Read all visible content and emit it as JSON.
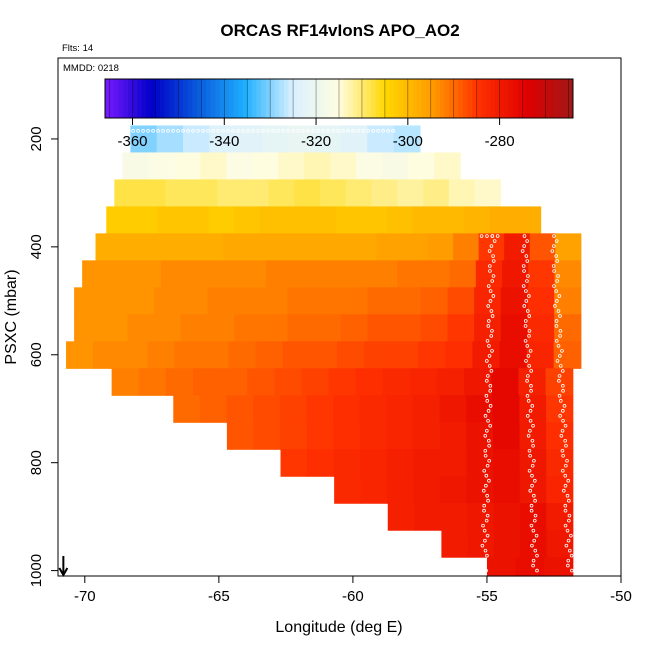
{
  "chart_data": {
    "type": "heatmap",
    "title": "ORCAS RF14vIonS APO_AO2",
    "flights_label": "Flts: 14",
    "date_label": "MMDD: 0218",
    "xlabel": "Longitude (deg E)",
    "ylabel": "PSXC (mbar)",
    "xlim": [
      -71,
      -50
    ],
    "ylim": [
      1010,
      50
    ],
    "x_ticks": [
      -70,
      -65,
      -60,
      -55,
      -50
    ],
    "x_tick_labels": [
      "-70",
      "-65",
      "-60",
      "-55",
      "-50"
    ],
    "y_ticks": [
      200,
      400,
      600,
      800,
      1000
    ],
    "y_tick_labels": [
      "200",
      "400",
      "600",
      "800",
      "1000"
    ],
    "colorbar": {
      "min": -366,
      "max": -264,
      "ticks": [
        -360,
        -340,
        -320,
        -300,
        -280
      ],
      "tick_labels": [
        "-360",
        "-340",
        "-320",
        "-300",
        "-280"
      ],
      "colors": [
        "#7a1aff",
        "#0000c8",
        "#0a5cdc",
        "#1fb0ff",
        "#d9f0ff",
        "#fffde0",
        "#ffd700",
        "#ff9a00",
        "#ff3000",
        "#e00000",
        "#a01818"
      ]
    },
    "rows": [
      {
        "p_top": 175,
        "p_bot": 225,
        "lon_start": -68.3,
        "lon_end": -57.5,
        "values": [
          -330,
          -328,
          -326,
          -324,
          -323,
          -322,
          -321,
          -322,
          -323,
          -326,
          -327
        ]
      },
      {
        "p_top": 225,
        "p_bot": 275,
        "lon_start": -68.6,
        "lon_end": -56.0,
        "values": [
          -317,
          -316,
          -315,
          -314,
          -316,
          -315,
          -314,
          -313,
          -314,
          -316,
          -317,
          -315,
          -314
        ]
      },
      {
        "p_top": 275,
        "p_bot": 325,
        "lon_start": -68.9,
        "lon_end": -54.5,
        "values": [
          -308,
          -308,
          -309,
          -309,
          -310,
          -310,
          -309,
          -308,
          -309,
          -310,
          -311,
          -312,
          -311,
          -313,
          -314
        ]
      },
      {
        "p_top": 325,
        "p_bot": 375,
        "lon_start": -69.2,
        "lon_end": -53.0,
        "values": [
          -303,
          -303,
          -302,
          -302,
          -303,
          -302,
          -301,
          -301,
          -301,
          -302,
          -302,
          -301,
          -300,
          -300,
          -299,
          -298,
          -298
        ]
      },
      {
        "p_top": 375,
        "p_bot": 425,
        "lon_start": -69.6,
        "lon_end": -51.5,
        "values": [
          -298,
          -298,
          -298,
          -298,
          -298,
          -297,
          -297,
          -297,
          -297,
          -297,
          -297,
          -296,
          -296,
          -295,
          -292,
          -285,
          -280,
          -288,
          -296
        ]
      },
      {
        "p_top": 425,
        "p_bot": 475,
        "lon_start": -70.1,
        "lon_end": -51.5,
        "values": [
          -294,
          -294,
          -294,
          -293,
          -293,
          -293,
          -293,
          -292,
          -292,
          -292,
          -292,
          -292,
          -291,
          -291,
          -290,
          -283,
          -279,
          -285,
          -293
        ]
      },
      {
        "p_top": 475,
        "p_bot": 525,
        "lon_start": -70.4,
        "lon_end": -51.5,
        "values": [
          -294,
          -294,
          -294,
          -293,
          -293,
          -292,
          -292,
          -292,
          -291,
          -291,
          -291,
          -290,
          -290,
          -289,
          -287,
          -282,
          -278,
          -284,
          -292
        ]
      },
      {
        "p_top": 525,
        "p_bot": 575,
        "lon_start": -70.4,
        "lon_end": -51.5,
        "values": [
          -294,
          -294,
          -293,
          -293,
          -292,
          -292,
          -291,
          -291,
          -290,
          -290,
          -289,
          -288,
          -288,
          -287,
          -285,
          -281,
          -277,
          -283,
          -290
        ]
      },
      {
        "p_top": 575,
        "p_bot": 625,
        "lon_start": -70.7,
        "lon_end": -51.5,
        "values": [
          -294,
          -293,
          -293,
          -292,
          -291,
          -291,
          -290,
          -289,
          -288,
          -288,
          -287,
          -286,
          -286,
          -285,
          -284,
          -280,
          -277,
          -282,
          -289
        ]
      },
      {
        "p_top": 625,
        "p_bot": 675,
        "lon_start": -69.0,
        "lon_end": -51.8,
        "values": [
          -292,
          -291,
          -290,
          -289,
          -289,
          -288,
          -287,
          -286,
          -285,
          -284,
          -283,
          -282,
          -281,
          -279,
          -276,
          -281,
          -286
        ]
      },
      {
        "p_top": 675,
        "p_bot": 725,
        "lon_start": -66.7,
        "lon_end": -51.8,
        "values": [
          -290,
          -289,
          -288,
          -287,
          -286,
          -285,
          -284,
          -283,
          -282,
          -281,
          -279,
          -277,
          -276,
          -280,
          -285
        ]
      },
      {
        "p_top": 725,
        "p_bot": 775,
        "lon_start": -64.7,
        "lon_end": -51.8,
        "values": [
          -288,
          -287,
          -286,
          -285,
          -284,
          -283,
          -282,
          -281,
          -280,
          -278,
          -276,
          -280,
          -284
        ]
      },
      {
        "p_top": 775,
        "p_bot": 825,
        "lon_start": -62.7,
        "lon_end": -51.8,
        "values": [
          -285,
          -284,
          -283,
          -282,
          -281,
          -280,
          -280,
          -278,
          -277,
          -279,
          -283
        ]
      },
      {
        "p_top": 825,
        "p_bot": 875,
        "lon_start": -60.7,
        "lon_end": -51.8,
        "values": [
          -283,
          -282,
          -281,
          -280,
          -279,
          -278,
          -277,
          -279,
          -282
        ]
      },
      {
        "p_top": 875,
        "p_bot": 925,
        "lon_start": -58.7,
        "lon_end": -51.8,
        "values": [
          -281,
          -280,
          -280,
          -279,
          -278,
          -277,
          -280
        ]
      },
      {
        "p_top": 925,
        "p_bot": 975,
        "lon_start": -56.7,
        "lon_end": -51.8,
        "values": [
          -280,
          -279,
          -278,
          -277,
          -279
        ]
      },
      {
        "p_top": 975,
        "p_bot": 1010,
        "lon_start": -55.0,
        "lon_end": -51.8,
        "values": [
          -278,
          -277,
          -278
        ]
      }
    ],
    "flight_track": {
      "segments": [
        {
          "lon_start": -68.2,
          "lon_end": -58.5,
          "p": 185
        },
        {
          "lon_start": -55.2,
          "lon_end": -54.6,
          "p": 380
        },
        {
          "lon_start": -54.8,
          "lon_end": -55.1,
          "p_start": 380,
          "p_end": 1000
        },
        {
          "lon_start": -53.6,
          "lon_end": -53.2,
          "p_start": 380,
          "p_end": 1000
        },
        {
          "lon_start": -52.5,
          "lon_end": -51.9,
          "p_start": 380,
          "p_end": 1000
        }
      ],
      "marker_color": "#ffffff"
    },
    "arrow_marker": {
      "lon": -70.8,
      "p": 1010
    }
  }
}
